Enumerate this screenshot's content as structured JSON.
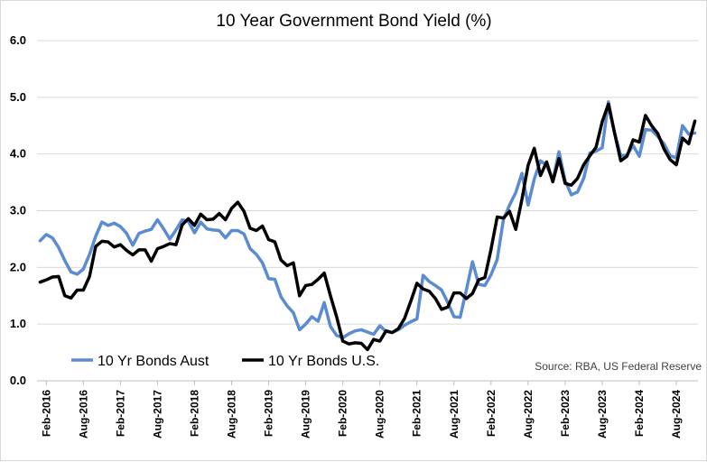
{
  "chart_data": {
    "type": "line",
    "title": "10 Year Government Bond Yield (%)",
    "source": "Source: RBA, US Federal Reserve",
    "ylim": [
      0,
      6
    ],
    "yticks": [
      "0.0",
      "1.0",
      "2.0",
      "3.0",
      "4.0",
      "5.0",
      "6.0"
    ],
    "ytick_values": [
      0,
      1,
      2,
      3,
      4,
      5,
      6
    ],
    "xticks": [
      "Feb-2016",
      "Aug-2016",
      "Feb-2017",
      "Aug-2017",
      "Feb-2018",
      "Aug-2018",
      "Feb-2019",
      "Aug-2019",
      "Feb-2020",
      "Aug-2020",
      "Feb-2021",
      "Aug-2021",
      "Feb-2022",
      "Aug-2022",
      "Feb-2023",
      "Aug-2023",
      "Feb-2024",
      "Aug-2024"
    ],
    "x_start": "Jan-2016",
    "x_end": "Nov-2024",
    "grid": "horizontal",
    "legend_position": "bottom-left",
    "series": [
      {
        "name": "10 Yr Bonds Aust",
        "color": "#5b8bd0",
        "values": [
          2.47,
          2.58,
          2.52,
          2.35,
          2.12,
          1.92,
          1.88,
          1.97,
          2.23,
          2.55,
          2.8,
          2.74,
          2.78,
          2.72,
          2.6,
          2.39,
          2.6,
          2.64,
          2.67,
          2.84,
          2.68,
          2.5,
          2.66,
          2.84,
          2.81,
          2.61,
          2.8,
          2.68,
          2.66,
          2.65,
          2.52,
          2.65,
          2.65,
          2.59,
          2.33,
          2.23,
          2.08,
          1.8,
          1.79,
          1.48,
          1.32,
          1.2,
          0.9,
          1.0,
          1.13,
          1.05,
          1.38,
          0.96,
          0.8,
          0.76,
          0.83,
          0.88,
          0.9,
          0.86,
          0.82,
          0.97,
          0.87,
          0.85,
          0.9,
          0.98,
          1.04,
          1.09,
          1.86,
          1.75,
          1.68,
          1.6,
          1.38,
          1.13,
          1.12,
          1.6,
          2.1,
          1.7,
          1.68,
          1.87,
          2.14,
          2.84,
          3.1,
          3.32,
          3.66,
          3.1,
          3.56,
          3.88,
          3.8,
          3.54,
          4.04,
          3.53,
          3.28,
          3.33,
          3.57,
          4.02,
          4.05,
          4.11,
          4.92,
          4.37,
          3.97,
          3.98,
          4.15,
          3.96,
          4.43,
          4.42,
          4.31,
          4.18,
          3.97,
          3.93,
          4.5,
          4.35,
          4.37
        ]
      },
      {
        "name": "10 Yr Bonds U.S.",
        "color": "#000000",
        "values": [
          1.74,
          1.78,
          1.83,
          1.84,
          1.5,
          1.46,
          1.6,
          1.6,
          1.84,
          2.37,
          2.46,
          2.45,
          2.36,
          2.4,
          2.3,
          2.22,
          2.31,
          2.31,
          2.11,
          2.33,
          2.37,
          2.42,
          2.4,
          2.75,
          2.86,
          2.74,
          2.94,
          2.84,
          2.85,
          2.95,
          2.84,
          3.04,
          3.15,
          2.99,
          2.69,
          2.65,
          2.73,
          2.49,
          2.45,
          2.13,
          2.03,
          2.08,
          1.5,
          1.68,
          1.7,
          1.79,
          1.9,
          1.5,
          1.13,
          0.7,
          0.65,
          0.67,
          0.66,
          0.55,
          0.73,
          0.7,
          0.88,
          0.85,
          0.92,
          1.1,
          1.4,
          1.72,
          1.62,
          1.58,
          1.45,
          1.26,
          1.3,
          1.55,
          1.55,
          1.45,
          1.54,
          1.78,
          1.82,
          2.32,
          2.89,
          2.87,
          2.99,
          2.67,
          3.2,
          3.8,
          4.1,
          3.62,
          3.86,
          3.51,
          3.92,
          3.48,
          3.45,
          3.57,
          3.81,
          3.97,
          4.12,
          4.57,
          4.88,
          4.37,
          3.88,
          3.96,
          4.25,
          4.21,
          4.68,
          4.5,
          4.36,
          4.09,
          3.9,
          3.81,
          4.28,
          4.18,
          4.58
        ]
      }
    ]
  }
}
